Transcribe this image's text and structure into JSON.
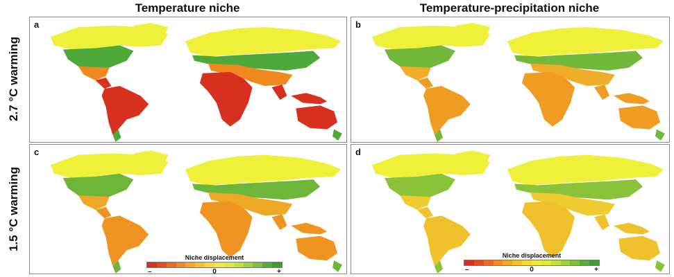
{
  "columns": [
    "Temperature niche",
    "Temperature-precipitation niche"
  ],
  "rows": [
    "2.7 °C warming",
    "1.5 °C warming"
  ],
  "panels": [
    {
      "id": "a",
      "letter": "a",
      "column": 0,
      "row": 0,
      "intensity": 1.0
    },
    {
      "id": "b",
      "letter": "b",
      "column": 1,
      "row": 0,
      "intensity": 0.55
    },
    {
      "id": "c",
      "letter": "c",
      "column": 0,
      "row": 1,
      "intensity": 0.6
    },
    {
      "id": "d",
      "letter": "d",
      "column": 1,
      "row": 1,
      "intensity": 0.3
    }
  ],
  "legend": {
    "title": "Niche displacement",
    "min_label": "–",
    "mid_label": "0",
    "max_label": "+",
    "colors": [
      "#d7301f",
      "#e34a1f",
      "#ec6a1e",
      "#f28a20",
      "#f5a623",
      "#f7c12b",
      "#f9d833",
      "#f2e93b",
      "#dcea3c",
      "#bfe23b",
      "#9ed43a",
      "#79c23a",
      "#55ae37",
      "#3f9b33"
    ]
  },
  "colors": {
    "strong_negative": "#d7301f",
    "moderate_negative": "#f08a1e",
    "neutral": "#eef03a",
    "positive": "#4fa83a",
    "ocean": "#ffffff"
  }
}
